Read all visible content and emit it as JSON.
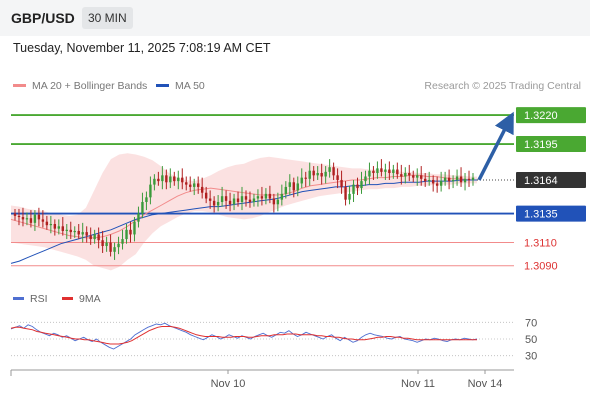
{
  "header": {
    "pair": "GBP/USD",
    "timeframe": "30 MIN"
  },
  "datetime": "Tuesday, November 11, 2025 7:08:19 AM CET",
  "legend": {
    "ma20_label": "MA 20 + Bollinger Bands",
    "ma50_label": "MA 50"
  },
  "credit": "Research © 2025 Trading Central",
  "rsi_legend": {
    "rsi_label": "RSI",
    "ma_label": "9MA"
  },
  "colors": {
    "green": "#4aa832",
    "blue": "#2152b8",
    "red": "#f28b8b",
    "band": "#f9d4d4",
    "arrow": "#2d5fa6",
    "rsi": "#4f6fd1",
    "rsi_ma": "#e03030",
    "candle_up": "#3b9a3b",
    "candle_down": "#b02020"
  },
  "chart_data": [
    {
      "type": "candlestick",
      "x_tick_labels": [
        "Nov 10",
        "Nov 11",
        "Nov 14"
      ],
      "ylim": [
        1.3082,
        1.3233
      ],
      "current_price": "1.3164",
      "levels": [
        {
          "label": "1.3220",
          "value": 1.322,
          "kind": "resistance"
        },
        {
          "label": "1.3195",
          "value": 1.3195,
          "kind": "resistance"
        },
        {
          "label": "1.3135",
          "value": 1.3135,
          "kind": "pivot"
        },
        {
          "label": "1.3110",
          "value": 1.311,
          "kind": "support"
        },
        {
          "label": "1.3090",
          "value": 1.309,
          "kind": "support"
        }
      ],
      "projection": {
        "from": 1.3164,
        "to": 1.322
      },
      "close": [
        1.3133,
        1.3132,
        1.313,
        1.3131,
        1.3127,
        1.3134,
        1.313,
        1.3128,
        1.3125,
        1.3126,
        1.3122,
        1.3124,
        1.312,
        1.3121,
        1.3119,
        1.312,
        1.3117,
        1.3119,
        1.3116,
        1.3113,
        1.3117,
        1.3112,
        1.3107,
        1.311,
        1.3102,
        1.3106,
        1.3109,
        1.3113,
        1.3121,
        1.3117,
        1.3128,
        1.3135,
        1.3145,
        1.3149,
        1.316,
        1.3165,
        1.3163,
        1.3168,
        1.3162,
        1.3167,
        1.3163,
        1.3166,
        1.3162,
        1.316,
        1.3158,
        1.3161,
        1.3158,
        1.3153,
        1.3148,
        1.3146,
        1.3142,
        1.3145,
        1.315,
        1.3146,
        1.3143,
        1.3148,
        1.3145,
        1.315,
        1.3147,
        1.3145,
        1.3148,
        1.315,
        1.3148,
        1.3152,
        1.3148,
        1.3143,
        1.3147,
        1.3152,
        1.3158,
        1.3162,
        1.3155,
        1.3161,
        1.3166,
        1.3165,
        1.3172,
        1.3168,
        1.317,
        1.3167,
        1.3171,
        1.3175,
        1.3168,
        1.3164,
        1.3158,
        1.3147,
        1.3152,
        1.316,
        1.3157,
        1.3163,
        1.3167,
        1.3172,
        1.317,
        1.3174,
        1.3171,
        1.3173,
        1.317,
        1.3173,
        1.3169,
        1.3167,
        1.317,
        1.3168,
        1.3166,
        1.3168,
        1.3165,
        1.3163,
        1.3164,
        1.3161,
        1.3159,
        1.3163,
        1.3166,
        1.3163,
        1.3164,
        1.3167,
        1.3162,
        1.3165,
        1.3164,
        1.3166
      ],
      "ma20": [
        1.313,
        1.3128,
        1.3126,
        1.3124,
        1.3122,
        1.312,
        1.3118,
        1.3116,
        1.3115,
        1.3114,
        1.3114,
        1.3115,
        1.3117,
        1.312,
        1.3124,
        1.3129,
        1.3134,
        1.3138,
        1.3142,
        1.3146,
        1.315,
        1.3153,
        1.3155,
        1.3156,
        1.3157,
        1.3156,
        1.3155,
        1.3154,
        1.3153,
        1.3152,
        1.3151,
        1.3151,
        1.3151,
        1.3152,
        1.3154,
        1.3157,
        1.3159,
        1.316,
        1.3161,
        1.3162,
        1.3163,
        1.3164,
        1.3164,
        1.3165,
        1.3166,
        1.3166,
        1.3167,
        1.3167,
        1.3168,
        1.3168,
        1.3167,
        1.3167,
        1.3166,
        1.3165,
        1.3165,
        1.3164,
        1.3164
      ],
      "ma50": [
        1.3092,
        1.3094,
        1.3097,
        1.31,
        1.3103,
        1.3106,
        1.3109,
        1.3111,
        1.3113,
        1.3115,
        1.3117,
        1.3119,
        1.3121,
        1.3124,
        1.3127,
        1.313,
        1.3132,
        1.3134,
        1.3135,
        1.3136,
        1.3137,
        1.3138,
        1.3139,
        1.314,
        1.3141,
        1.3141,
        1.3142,
        1.3143,
        1.3144,
        1.3145,
        1.3146,
        1.3147,
        1.3148,
        1.315,
        1.3152,
        1.3154,
        1.3155,
        1.3156,
        1.3157,
        1.3158,
        1.3158,
        1.3159,
        1.3159,
        1.316,
        1.316,
        1.3161,
        1.3161,
        1.3162,
        1.3162,
        1.3162,
        1.3163,
        1.3163,
        1.3163,
        1.3163,
        1.3164,
        1.3164,
        1.3164
      ],
      "band_upper": [
        1.3142,
        1.3141,
        1.3139,
        1.3138,
        1.3137,
        1.3135,
        1.3134,
        1.3133,
        1.3134,
        1.314,
        1.3155,
        1.317,
        1.3182,
        1.3186,
        1.3187,
        1.3186,
        1.3184,
        1.3181,
        1.3176,
        1.317,
        1.3166,
        1.3164,
        1.3163,
        1.3165,
        1.3168,
        1.3172,
        1.3175,
        1.3177,
        1.3178,
        1.3181,
        1.3183,
        1.3184,
        1.3183,
        1.3182,
        1.3181,
        1.318,
        1.3179,
        1.3178,
        1.3177,
        1.3176,
        1.3175,
        1.3174,
        1.3174,
        1.3173,
        1.3173,
        1.3172,
        1.3172,
        1.3171,
        1.3171,
        1.317,
        1.317,
        1.3169,
        1.3169,
        1.3168,
        1.3168,
        1.3167,
        1.3167
      ],
      "band_lower": [
        1.311,
        1.3109,
        1.3108,
        1.3107,
        1.3106,
        1.3104,
        1.3102,
        1.31,
        1.3098,
        1.3095,
        1.309,
        1.3088,
        1.3086,
        1.3089,
        1.3095,
        1.31,
        1.311,
        1.3118,
        1.3124,
        1.3128,
        1.3132,
        1.3135,
        1.3137,
        1.3137,
        1.3136,
        1.3134,
        1.3132,
        1.3131,
        1.313,
        1.3131,
        1.3133,
        1.3136,
        1.3139,
        1.3142,
        1.3144,
        1.3146,
        1.3148,
        1.315,
        1.3151,
        1.3152,
        1.3153,
        1.3154,
        1.3155,
        1.3156,
        1.3156,
        1.3157,
        1.3157,
        1.3158,
        1.3158,
        1.3159,
        1.3159,
        1.316,
        1.316,
        1.316,
        1.3161,
        1.3161,
        1.3161
      ]
    },
    {
      "type": "line",
      "name": "RSI",
      "y_tick_labels": [
        "70",
        "50",
        "30"
      ],
      "ylim": [
        20,
        80
      ],
      "rsi": [
        62,
        64,
        66,
        63,
        67,
        65,
        61,
        58,
        56,
        54,
        57,
        55,
        52,
        54,
        51,
        48,
        50,
        52,
        49,
        47,
        50,
        46,
        43,
        40,
        38,
        41,
        44,
        47,
        50,
        55,
        58,
        61,
        64,
        66,
        68,
        67,
        69,
        66,
        64,
        62,
        60,
        58,
        55,
        53,
        51,
        49,
        52,
        55,
        53,
        50,
        52,
        55,
        53,
        51,
        54,
        52,
        50,
        53,
        55,
        57,
        54,
        52,
        55,
        58,
        57,
        60,
        56,
        53,
        55,
        58,
        56,
        54,
        52,
        50,
        53,
        55,
        51,
        48,
        52,
        49,
        46,
        48,
        52,
        55,
        57,
        55,
        54,
        53,
        51,
        50,
        52,
        53,
        50,
        49,
        48,
        46,
        48,
        50,
        49,
        51,
        50,
        48,
        47,
        49,
        50,
        49,
        51,
        50,
        49,
        50
      ],
      "rsi_ma": [
        63,
        64,
        64,
        63,
        62,
        61,
        59,
        58,
        57,
        56,
        55,
        54,
        53,
        52,
        51,
        50,
        50,
        49,
        49,
        48,
        47,
        46,
        45,
        44,
        44,
        44,
        45,
        46,
        48,
        51,
        54,
        57,
        60,
        62,
        64,
        65,
        65,
        65,
        64,
        63,
        61,
        59,
        57,
        55,
        54,
        53,
        53,
        53,
        53,
        52,
        52,
        52,
        53,
        53,
        53,
        52,
        52,
        53,
        54,
        54,
        54,
        55,
        55,
        55,
        56,
        56,
        56,
        55,
        55,
        55,
        55,
        54,
        54,
        53,
        53,
        52,
        52,
        51,
        50,
        50,
        49,
        49,
        49,
        50,
        51,
        52,
        52,
        53,
        53,
        52,
        52,
        51,
        51,
        50,
        49,
        49,
        49,
        49,
        49,
        49,
        49,
        49,
        49,
        49,
        49,
        49,
        49,
        49,
        49
      ]
    }
  ]
}
